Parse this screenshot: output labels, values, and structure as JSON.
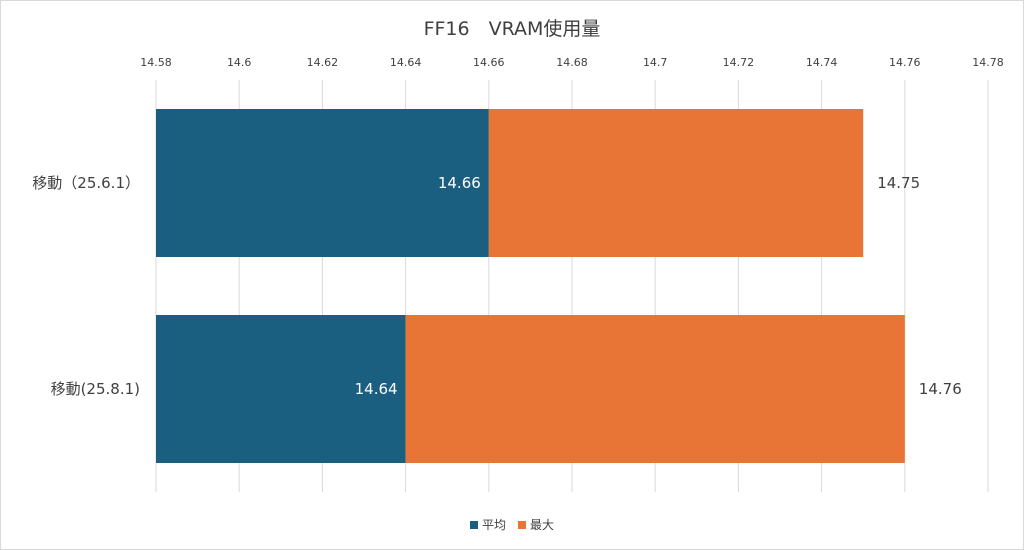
{
  "chart_data": {
    "type": "bar",
    "orientation": "horizontal",
    "title": "FF16　VRAM使用量",
    "categories": [
      "移動（25.6.1）",
      "移動(25.8.1)"
    ],
    "series": [
      {
        "name": "平均",
        "values": [
          14.66,
          14.64
        ],
        "color": "#1a5e80"
      },
      {
        "name": "最大",
        "values": [
          14.75,
          14.76
        ],
        "color": "#e87436"
      }
    ],
    "xlim": [
      14.58,
      14.78
    ],
    "x_ticks": [
      "14.58",
      "14.6",
      "14.62",
      "14.64",
      "14.66",
      "14.68",
      "14.7",
      "14.72",
      "14.74",
      "14.76",
      "14.78"
    ],
    "axis_position": "top",
    "grid": true,
    "legend_position": "bottom",
    "data_labels": true
  }
}
